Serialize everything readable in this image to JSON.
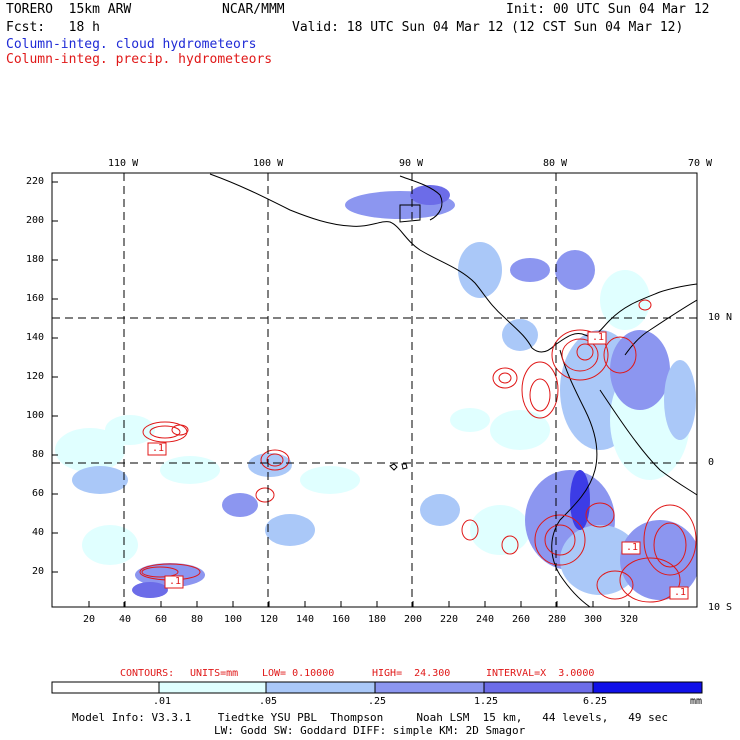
{
  "header": {
    "title_left": "TORERO  15km ARW",
    "center": "NCAR/MMM",
    "init": "Init: 00 UTC Sun 04 Mar 12",
    "fcst": "Fcst:   18 h",
    "valid": "Valid: 18 UTC Sun 04 Mar 12 (12 CST Sun 04 Mar 12)",
    "field1": "Column-integ. cloud hydrometeors",
    "field2": "Column-integ. precip. hydrometeors"
  },
  "colors": {
    "field1": "#1f2bd6",
    "field2": "#e01818",
    "contour": "#e01818",
    "shade1": "#e0ffff",
    "shade2": "#aac8f8",
    "shade3": "#8c96f0",
    "shade4": "#6c6ce8",
    "shade5": "#3c3ce6",
    "shade6": "#1010e8"
  },
  "axes": {
    "x_ticks": [
      "20",
      "40",
      "60",
      "80",
      "100",
      "120",
      "140",
      "160",
      "180",
      "200",
      "220",
      "240",
      "260",
      "280",
      "300",
      "320"
    ],
    "y_ticks": [
      "20",
      "40",
      "60",
      "80",
      "100",
      "120",
      "140",
      "160",
      "180",
      "200",
      "220"
    ],
    "lon_labels": [
      "110 W",
      "100 W",
      "90 W",
      "80 W",
      "70 W"
    ],
    "lat_labels": [
      "10 N",
      "0",
      "10 S"
    ]
  },
  "contour_labels": [
    ".1",
    ".1",
    ".1",
    ".1",
    ".1"
  ],
  "contours_info": {
    "label": "CONTOURS:",
    "units": "UNITS=mm",
    "low": "LOW= 0.10000",
    "high": "HIGH=  24.300",
    "interval": "INTERVAL=X  3.0000"
  },
  "colorbar": {
    "levels": [
      ".01",
      ".05",
      ".25",
      "1.25",
      "6.25"
    ],
    "unit": "mm"
  },
  "footer": {
    "line1": "Model Info: V3.3.1    Tiedtke YSU PBL  Thompson     Noah LSM  15 km,   44 levels,   49 sec",
    "line2": "LW: Godd SW: Goddard DIFF: simple KM: 2D Smagor"
  }
}
